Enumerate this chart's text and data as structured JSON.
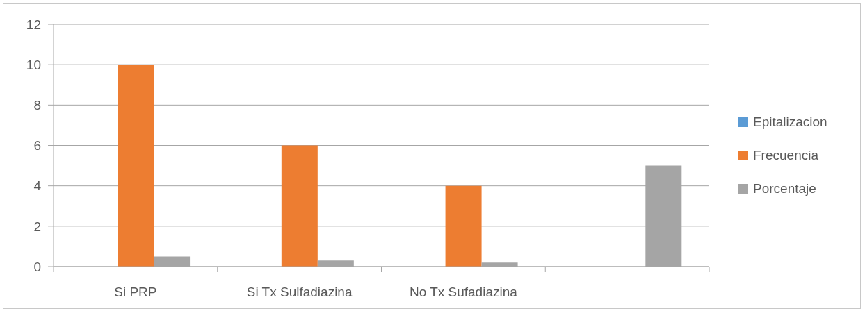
{
  "chart_data": {
    "type": "bar",
    "categories": [
      "Si PRP",
      "Si Tx Sulfadiazina",
      "No Tx Sufadiazina",
      null
    ],
    "series": [
      {
        "name": "Epitalizacion",
        "color": "#5b9bd5",
        "values": [
          null,
          null,
          null,
          null
        ]
      },
      {
        "name": "Frecuencia",
        "color": "#ed7d31",
        "values": [
          10,
          6,
          4,
          null
        ]
      },
      {
        "name": "Porcentaje",
        "color": "#a5a5a5",
        "values": [
          0.5,
          0.3,
          0.2,
          5
        ]
      }
    ],
    "ylim": [
      0,
      12
    ],
    "yticks": [
      0,
      2,
      4,
      6,
      8,
      10,
      12
    ],
    "grid": "y",
    "legend": "right"
  }
}
